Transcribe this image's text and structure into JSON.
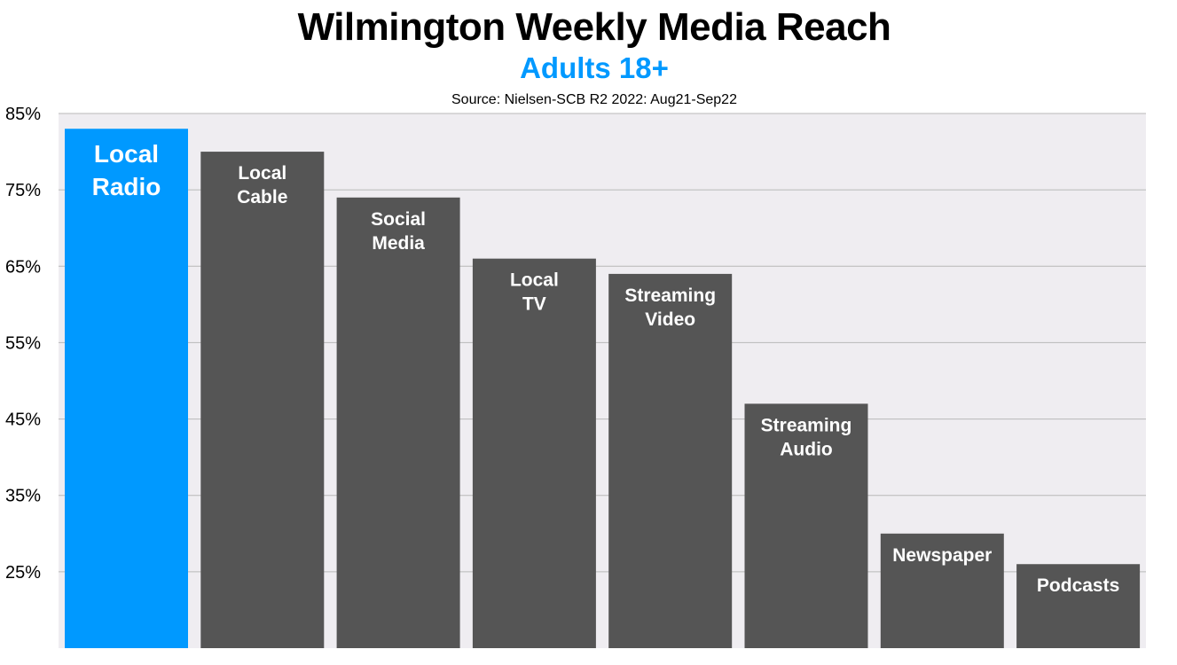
{
  "colors": {
    "background": "#ffffff",
    "plot_background": "#efedf1",
    "gridline": "#b8b8b8",
    "highlight_bar": "#0099ff",
    "default_bar": "#555555",
    "bar_label": "#ffffff",
    "subtitle": "#0099ff"
  },
  "chart_data": {
    "type": "bar",
    "title": "Wilmington Weekly Media Reach",
    "subtitle": "Adults 18+",
    "source": "Source: Nielsen-SCB R2 2022: Aug21-Sep22",
    "xlabel": "",
    "ylabel": "",
    "ylim": [
      15,
      85
    ],
    "y_ticks": [
      "85%",
      "75%",
      "65%",
      "55%",
      "45%",
      "35%",
      "25%"
    ],
    "y_tick_values": [
      85,
      75,
      65,
      55,
      45,
      35,
      25
    ],
    "grid": true,
    "legend": "none",
    "categories": [
      [
        "Local",
        "Radio"
      ],
      [
        "Local",
        "Cable"
      ],
      [
        "Social",
        "Media"
      ],
      [
        "Local",
        "TV"
      ],
      [
        "Streaming",
        "Video"
      ],
      [
        "Streaming",
        "Audio"
      ],
      [
        "Newspaper"
      ],
      [
        "Podcasts"
      ]
    ],
    "values": [
      83,
      80,
      74,
      66,
      64,
      47,
      30,
      26
    ],
    "highlight_index": 0
  }
}
